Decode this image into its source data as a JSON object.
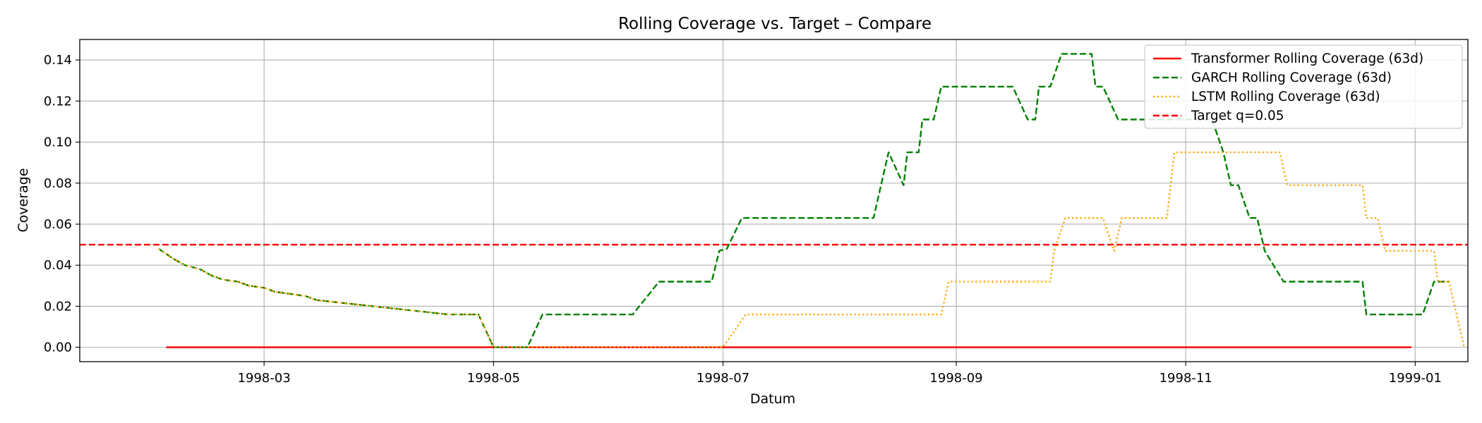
{
  "chart_data": {
    "type": "line",
    "title": "Rolling Coverage vs. Target – Compare",
    "xlabel": "Datum",
    "ylabel": "Coverage",
    "xlim": [
      "1998-01-11",
      "1999-01-15"
    ],
    "ylim": [
      -0.007,
      0.15
    ],
    "x_ticks": [
      "1998-03",
      "1998-05",
      "1998-07",
      "1998-09",
      "1998-11",
      "1999-01"
    ],
    "y_ticks": [
      "0.00",
      "0.02",
      "0.04",
      "0.06",
      "0.08",
      "0.10",
      "0.12",
      "0.14"
    ],
    "grid": true,
    "legend_position": "top-right",
    "target": 0.05,
    "series": [
      {
        "name": "Transformer Rolling Coverage (63d)",
        "color": "#ff0000",
        "style": "solid",
        "points": [
          [
            "1998-02-03",
            0.0
          ],
          [
            "1998-12-31",
            0.0
          ]
        ]
      },
      {
        "name": "GARCH Rolling Coverage (63d)",
        "color": "#008000",
        "style": "dashed",
        "points": [
          [
            "1998-02-01",
            0.048
          ],
          [
            "1998-02-05",
            0.043
          ],
          [
            "1998-02-08",
            0.04
          ],
          [
            "1998-02-12",
            0.038
          ],
          [
            "1998-02-15",
            0.035
          ],
          [
            "1998-02-18",
            0.033
          ],
          [
            "1998-02-22",
            0.032
          ],
          [
            "1998-02-25",
            0.03
          ],
          [
            "1998-03-01",
            0.029
          ],
          [
            "1998-03-04",
            0.027
          ],
          [
            "1998-03-08",
            0.026
          ],
          [
            "1998-03-12",
            0.025
          ],
          [
            "1998-03-15",
            0.023
          ],
          [
            "1998-03-20",
            0.022
          ],
          [
            "1998-03-25",
            0.021
          ],
          [
            "1998-03-30",
            0.02
          ],
          [
            "1998-04-04",
            0.019
          ],
          [
            "1998-04-09",
            0.018
          ],
          [
            "1998-04-14",
            0.017
          ],
          [
            "1998-04-19",
            0.016
          ],
          [
            "1998-04-24",
            0.016
          ],
          [
            "1998-04-27",
            0.016
          ],
          [
            "1998-05-01",
            0.0
          ],
          [
            "1998-05-10",
            0.0
          ],
          [
            "1998-05-14",
            0.016
          ],
          [
            "1998-05-22",
            0.016
          ],
          [
            "1998-06-07",
            0.016
          ],
          [
            "1998-06-14",
            0.032
          ],
          [
            "1998-06-28",
            0.032
          ],
          [
            "1998-06-30",
            0.047
          ],
          [
            "1998-07-02",
            0.048
          ],
          [
            "1998-07-06",
            0.063
          ],
          [
            "1998-08-10",
            0.063
          ],
          [
            "1998-08-12",
            0.079
          ],
          [
            "1998-08-14",
            0.095
          ],
          [
            "1998-08-18",
            0.079
          ],
          [
            "1998-08-19",
            0.095
          ],
          [
            "1998-08-22",
            0.095
          ],
          [
            "1998-08-23",
            0.111
          ],
          [
            "1998-08-26",
            0.111
          ],
          [
            "1998-08-28",
            0.127
          ],
          [
            "1998-09-16",
            0.127
          ],
          [
            "1998-09-20",
            0.111
          ],
          [
            "1998-09-22",
            0.111
          ],
          [
            "1998-09-23",
            0.127
          ],
          [
            "1998-09-26",
            0.127
          ],
          [
            "1998-09-29",
            0.143
          ],
          [
            "1998-10-07",
            0.143
          ],
          [
            "1998-10-08",
            0.127
          ],
          [
            "1998-10-10",
            0.127
          ],
          [
            "1998-10-14",
            0.111
          ],
          [
            "1998-11-08",
            0.111
          ],
          [
            "1998-11-11",
            0.095
          ],
          [
            "1998-11-13",
            0.079
          ],
          [
            "1998-11-15",
            0.079
          ],
          [
            "1998-11-18",
            0.063
          ],
          [
            "1998-11-20",
            0.063
          ],
          [
            "1998-11-22",
            0.047
          ],
          [
            "1998-11-27",
            0.032
          ],
          [
            "1998-12-18",
            0.032
          ],
          [
            "1998-12-19",
            0.016
          ],
          [
            "1999-01-03",
            0.016
          ],
          [
            "1999-01-06",
            0.032
          ],
          [
            "1999-01-10",
            0.032
          ]
        ]
      },
      {
        "name": "LSTM Rolling Coverage (63d)",
        "color": "#ffa500",
        "style": "dotted",
        "points": [
          [
            "1998-02-01",
            0.048
          ],
          [
            "1998-02-05",
            0.043
          ],
          [
            "1998-02-08",
            0.04
          ],
          [
            "1998-02-12",
            0.038
          ],
          [
            "1998-02-15",
            0.035
          ],
          [
            "1998-02-18",
            0.033
          ],
          [
            "1998-02-22",
            0.032
          ],
          [
            "1998-02-25",
            0.03
          ],
          [
            "1998-03-01",
            0.029
          ],
          [
            "1998-03-04",
            0.027
          ],
          [
            "1998-03-08",
            0.026
          ],
          [
            "1998-03-12",
            0.025
          ],
          [
            "1998-03-15",
            0.023
          ],
          [
            "1998-03-20",
            0.022
          ],
          [
            "1998-03-25",
            0.021
          ],
          [
            "1998-03-30",
            0.02
          ],
          [
            "1998-04-04",
            0.019
          ],
          [
            "1998-04-09",
            0.018
          ],
          [
            "1998-04-14",
            0.017
          ],
          [
            "1998-04-19",
            0.016
          ],
          [
            "1998-04-24",
            0.016
          ],
          [
            "1998-04-27",
            0.016
          ],
          [
            "1998-05-01",
            0.0
          ],
          [
            "1998-07-01",
            0.0
          ],
          [
            "1998-07-07",
            0.016
          ],
          [
            "1998-08-28",
            0.016
          ],
          [
            "1998-08-30",
            0.032
          ],
          [
            "1998-09-26",
            0.032
          ],
          [
            "1998-09-27",
            0.047
          ],
          [
            "1998-09-30",
            0.063
          ],
          [
            "1998-10-10",
            0.063
          ],
          [
            "1998-10-13",
            0.047
          ],
          [
            "1998-10-15",
            0.063
          ],
          [
            "1998-10-27",
            0.063
          ],
          [
            "1998-10-29",
            0.095
          ],
          [
            "1998-11-26",
            0.095
          ],
          [
            "1998-11-28",
            0.079
          ],
          [
            "1998-12-18",
            0.079
          ],
          [
            "1998-12-19",
            0.063
          ],
          [
            "1998-12-22",
            0.063
          ],
          [
            "1998-12-24",
            0.047
          ],
          [
            "1999-01-06",
            0.047
          ],
          [
            "1999-01-07",
            0.032
          ],
          [
            "1999-01-10",
            0.032
          ],
          [
            "1999-01-14",
            0.0
          ]
        ]
      }
    ],
    "legend": [
      {
        "label": "Transformer Rolling Coverage (63d)",
        "color": "#ff0000",
        "style": "solid"
      },
      {
        "label": "GARCH Rolling Coverage (63d)",
        "color": "#008000",
        "style": "dashed"
      },
      {
        "label": "LSTM Rolling Coverage (63d)",
        "color": "#ffa500",
        "style": "dotted"
      },
      {
        "label": "Target q=0.05",
        "color": "#ff0000",
        "style": "dashed"
      }
    ]
  }
}
